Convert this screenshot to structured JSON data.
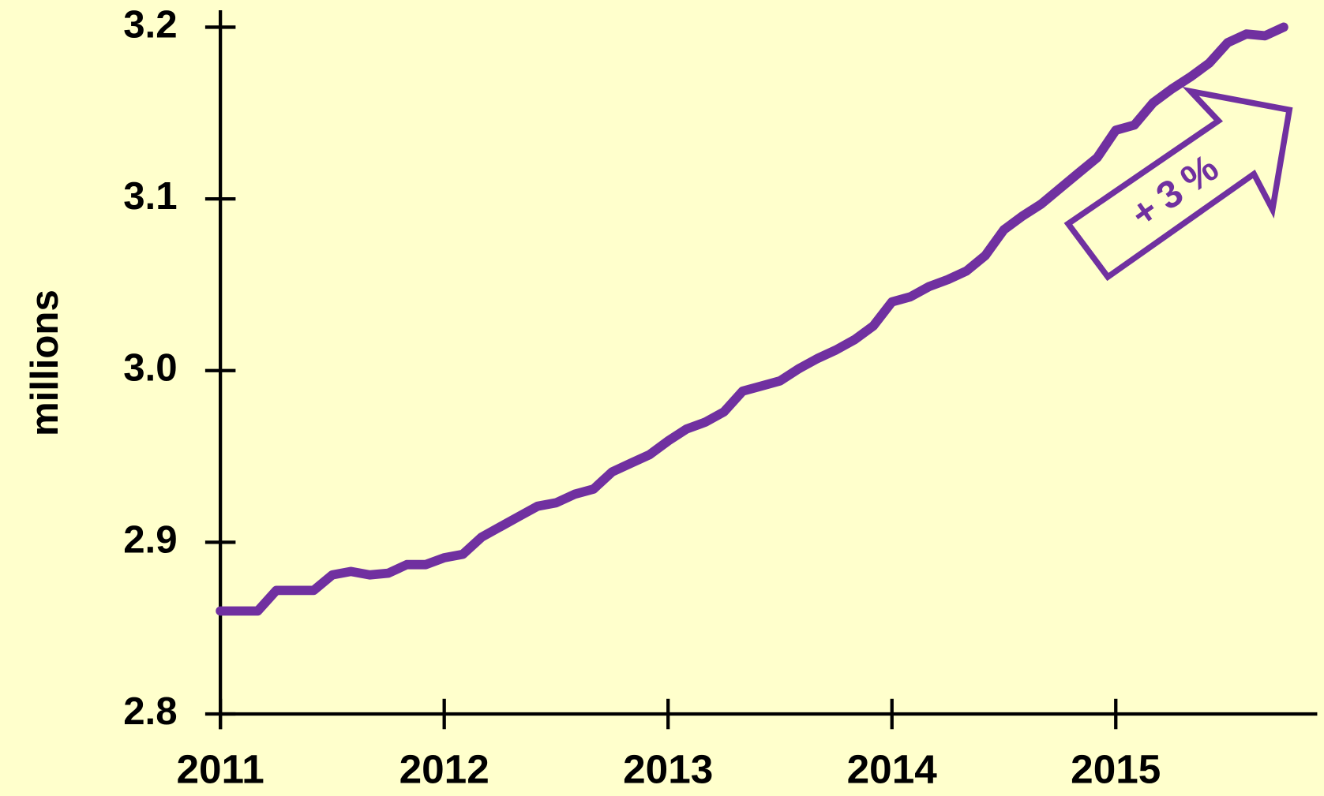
{
  "chart_data": {
    "type": "line",
    "y_label": "millions",
    "annotation": "+3%",
    "x": [
      2011,
      2011.083,
      2011.167,
      2011.25,
      2011.333,
      2011.417,
      2011.5,
      2011.583,
      2011.667,
      2011.75,
      2011.833,
      2011.917,
      2012,
      2012.083,
      2012.167,
      2012.25,
      2012.333,
      2012.417,
      2012.5,
      2012.583,
      2012.667,
      2012.75,
      2012.833,
      2012.917,
      2013,
      2013.083,
      2013.167,
      2013.25,
      2013.333,
      2013.417,
      2013.5,
      2013.583,
      2013.667,
      2013.75,
      2013.833,
      2013.917,
      2014,
      2014.083,
      2014.167,
      2014.25,
      2014.333,
      2014.417,
      2014.5,
      2014.583,
      2014.667,
      2014.75,
      2014.833,
      2014.917,
      2015,
      2015.083,
      2015.167,
      2015.25,
      2015.333,
      2015.417,
      2015.5,
      2015.583,
      2015.667,
      2015.75
    ],
    "series": [
      {
        "color": "#7030a0",
        "values": [
          2.86,
          2.86,
          2.86,
          2.872,
          2.872,
          2.872,
          2.881,
          2.883,
          2.881,
          2.882,
          2.887,
          2.887,
          2.891,
          2.893,
          2.903,
          2.909,
          2.915,
          2.921,
          2.923,
          2.928,
          2.931,
          2.941,
          2.946,
          2.951,
          2.959,
          2.966,
          2.97,
          2.976,
          2.988,
          2.991,
          2.994,
          3.001,
          3.007,
          3.012,
          3.018,
          3.026,
          3.04,
          3.043,
          3.049,
          3.053,
          3.058,
          3.067,
          3.082,
          3.09,
          3.097,
          3.106,
          3.115,
          3.124,
          3.14,
          3.143,
          3.156,
          3.164,
          3.171,
          3.179,
          3.191,
          3.196,
          3.195,
          3.2
        ]
      }
    ],
    "xlim": [
      2011,
      2015.9
    ],
    "xticks": [
      2011,
      2012,
      2013,
      2014,
      2015
    ],
    "ylim": [
      2.8,
      3.2
    ],
    "yticks": [
      2.8,
      2.9,
      {
        "value": 3,
        "label": "3.0"
      },
      3.1,
      3.2
    ],
    "grid": false
  }
}
